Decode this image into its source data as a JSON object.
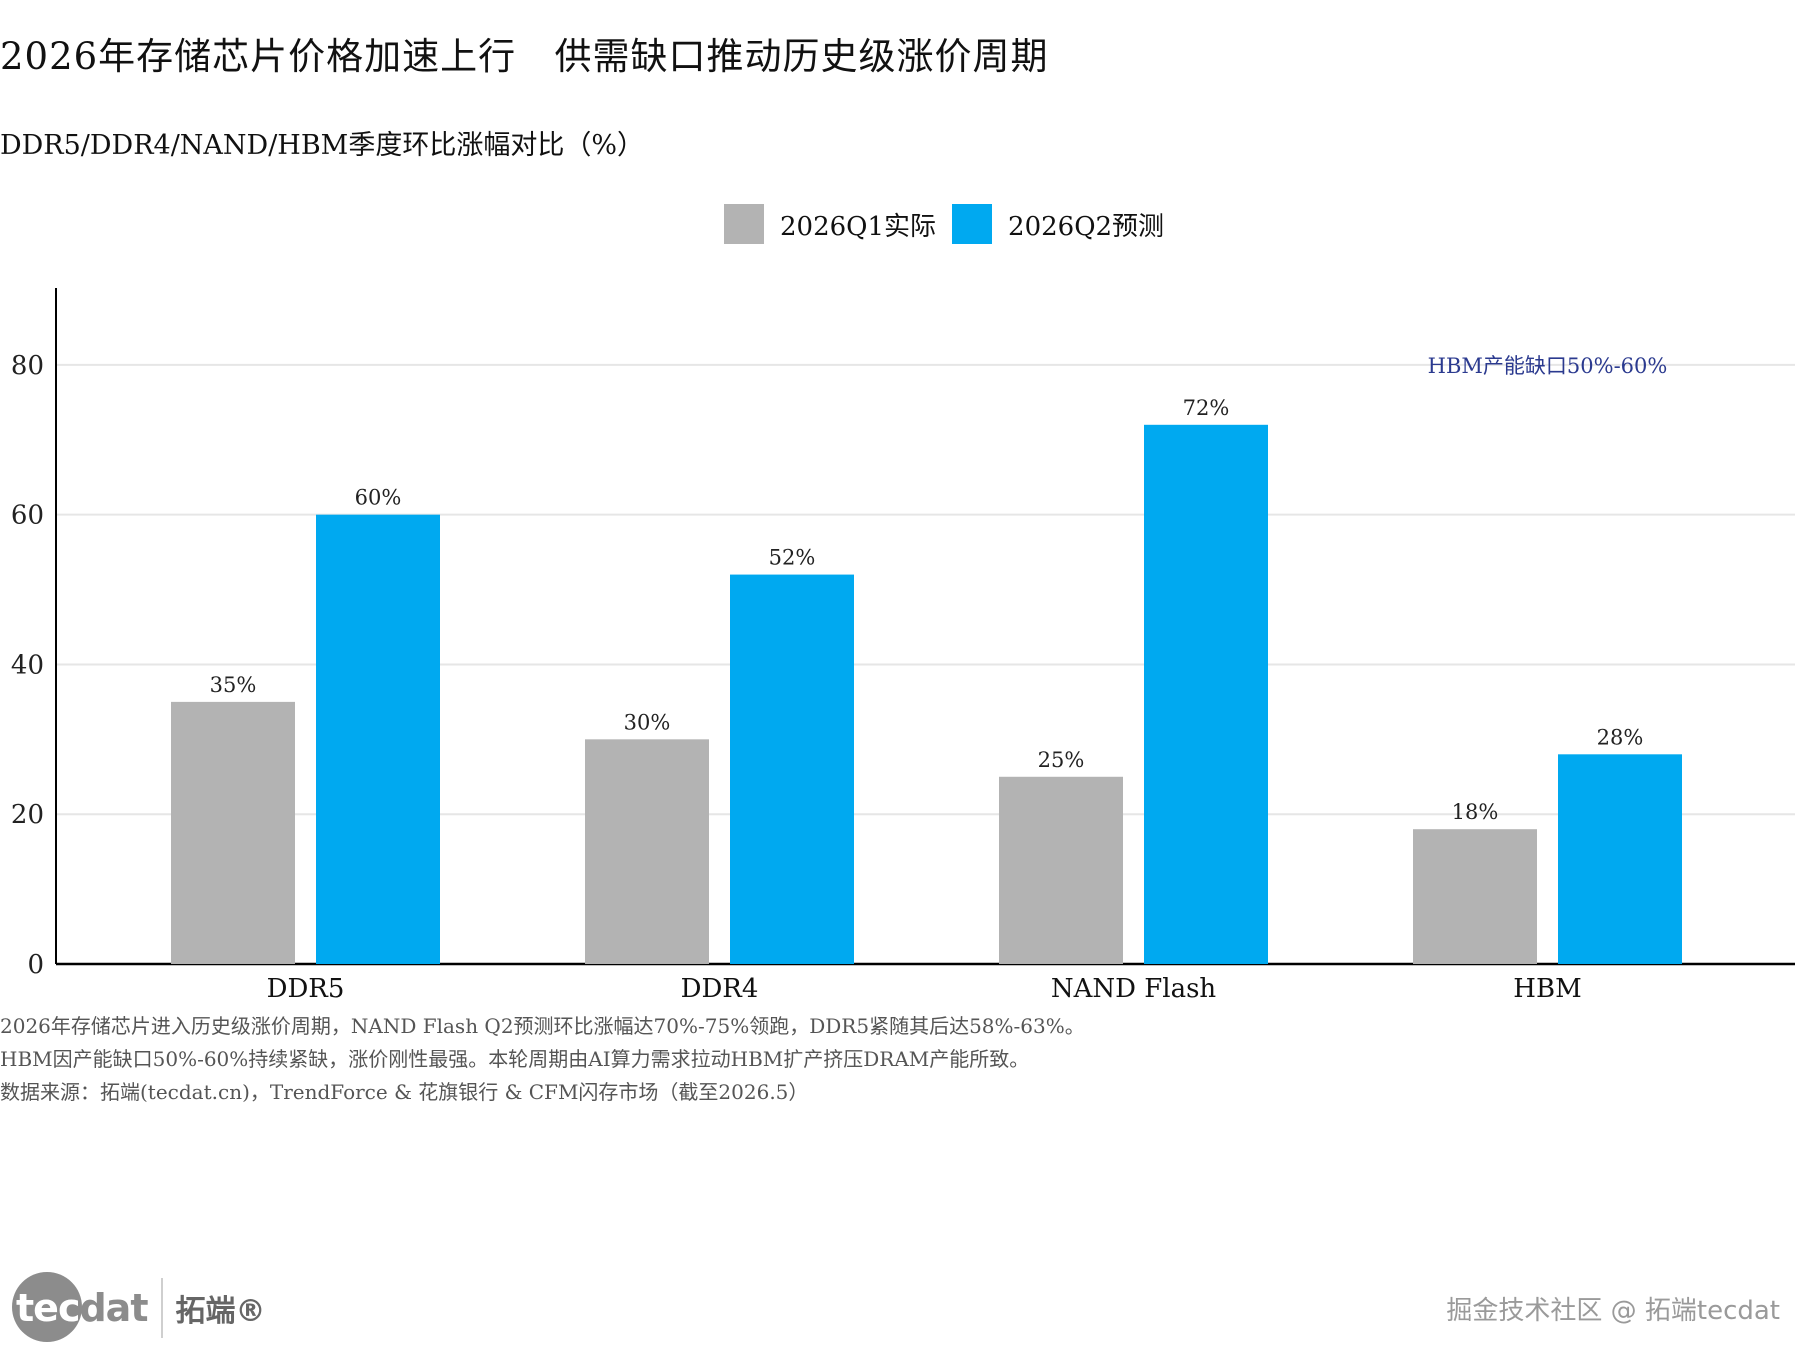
{
  "title": "2026年存储芯片价格加速上行   供需缺口推动历史级涨价周期",
  "subtitle": "DDR5/DDR4/NAND/HBM季度环比涨幅对比（%）",
  "legend": [
    {
      "label": "2026Q1实际",
      "color": "#b3b3b3"
    },
    {
      "label": "2026Q2预测",
      "color": "#00a9f0"
    }
  ],
  "chart_data": {
    "type": "bar",
    "categories": [
      "DDR5",
      "DDR4",
      "NAND Flash",
      "HBM"
    ],
    "series": [
      {
        "name": "2026Q1实际",
        "values": [
          35,
          30,
          25,
          18
        ],
        "color": "#b3b3b3",
        "labels": [
          "35%",
          "30%",
          "25%",
          "18%"
        ]
      },
      {
        "name": "2026Q2预测",
        "values": [
          60,
          52,
          72,
          28
        ],
        "color": "#00a9f0",
        "labels": [
          "60%",
          "52%",
          "72%",
          "28%"
        ]
      }
    ],
    "ylim": [
      0,
      90
    ],
    "yticks": [
      0,
      20,
      40,
      60,
      80
    ],
    "grid": true,
    "annotation": {
      "text": "HBM产能缺口50%-60%",
      "color": "#2b3a8f",
      "x_category": "HBM",
      "y": 80
    }
  },
  "notes": [
    "2026年存储芯片进入历史级涨价周期，NAND Flash Q2预测环比涨幅达70%-75%领跑，DDR5紧随其后达58%-63%。",
    "HBM因产能缺口50%-60%持续紧缺，涨价刚性最强。本轮周期由AI算力需求拉动HBM扩产挤压DRAM产能所致。",
    "数据来源：拓端(tecdat.cn)，TrendForce & 花旗银行 & CFM闪存市场（截至2026.5）"
  ],
  "logo": {
    "prefix": "tec",
    "suffix": "dat",
    "cn": "拓端®"
  },
  "watermark": "掘金技术社区 @ 拓端tecdat"
}
